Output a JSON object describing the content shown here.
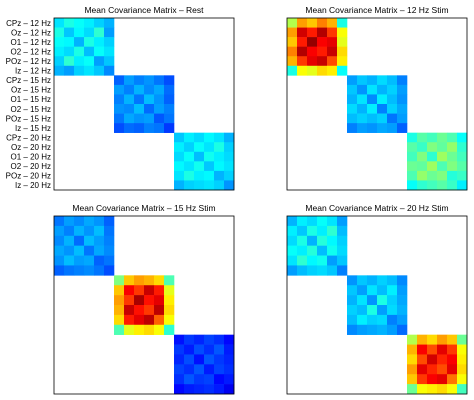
{
  "figure": {
    "row_labels": [
      "CPz – 12 Hz",
      "Oz – 12 Hz",
      "O1 – 12 Hz",
      "O2 – 12 Hz",
      "POz – 12 Hz",
      "Iz – 12 Hz",
      "CPz – 15 Hz",
      "Oz – 15 Hz",
      "O1 – 15 Hz",
      "O2 – 15 Hz",
      "POz – 15 Hz",
      "Iz – 15 Hz",
      "CPz – 20 Hz",
      "Oz – 20 Hz",
      "O1 – 20 Hz",
      "O2 – 20 Hz",
      "POz – 20 Hz",
      "Iz – 20 Hz"
    ],
    "colormap": "jet"
  },
  "chart_data": [
    {
      "type": "heatmap",
      "title": "Mean Covariance Matrix – Rest",
      "blocks": [
        [
          [
            0.35,
            0.4,
            0.38,
            0.36,
            0.33,
            0.3
          ],
          [
            0.4,
            0.32,
            0.37,
            0.34,
            0.42,
            0.28
          ],
          [
            0.38,
            0.37,
            0.3,
            0.4,
            0.36,
            0.33
          ],
          [
            0.36,
            0.34,
            0.4,
            0.31,
            0.38,
            0.35
          ],
          [
            0.33,
            0.42,
            0.36,
            0.38,
            0.28,
            0.32
          ],
          [
            0.3,
            0.28,
            0.33,
            0.35,
            0.32,
            0.26
          ]
        ],
        [
          [
            0.22,
            0.28,
            0.25,
            0.27,
            0.24,
            0.2
          ],
          [
            0.28,
            0.25,
            0.3,
            0.26,
            0.29,
            0.23
          ],
          [
            0.25,
            0.3,
            0.24,
            0.31,
            0.27,
            0.22
          ],
          [
            0.27,
            0.26,
            0.31,
            0.23,
            0.28,
            0.25
          ],
          [
            0.24,
            0.29,
            0.27,
            0.28,
            0.21,
            0.24
          ],
          [
            0.2,
            0.23,
            0.22,
            0.25,
            0.24,
            0.18
          ]
        ],
        [
          [
            0.32,
            0.36,
            0.34,
            0.37,
            0.35,
            0.3
          ],
          [
            0.36,
            0.33,
            0.38,
            0.35,
            0.4,
            0.33
          ],
          [
            0.34,
            0.38,
            0.31,
            0.39,
            0.36,
            0.34
          ],
          [
            0.37,
            0.35,
            0.39,
            0.32,
            0.37,
            0.35
          ],
          [
            0.35,
            0.4,
            0.36,
            0.37,
            0.3,
            0.33
          ],
          [
            0.3,
            0.33,
            0.34,
            0.35,
            0.33,
            0.27
          ]
        ]
      ]
    },
    {
      "type": "heatmap",
      "title": "Mean Covariance Matrix – 12 Hz Stim",
      "blocks": [
        [
          [
            0.55,
            0.72,
            0.68,
            0.75,
            0.7,
            0.4
          ],
          [
            0.72,
            0.92,
            0.85,
            0.95,
            0.82,
            0.62
          ],
          [
            0.68,
            0.85,
            0.98,
            0.88,
            0.9,
            0.6
          ],
          [
            0.75,
            0.95,
            0.88,
            0.85,
            0.93,
            0.66
          ],
          [
            0.7,
            0.82,
            0.9,
            0.93,
            0.8,
            0.64
          ],
          [
            0.4,
            0.62,
            0.6,
            0.66,
            0.64,
            0.38
          ]
        ],
        [
          [
            0.28,
            0.32,
            0.3,
            0.34,
            0.31,
            0.25
          ],
          [
            0.32,
            0.27,
            0.35,
            0.3,
            0.33,
            0.28
          ],
          [
            0.3,
            0.35,
            0.26,
            0.36,
            0.31,
            0.27
          ],
          [
            0.34,
            0.3,
            0.36,
            0.25,
            0.33,
            0.29
          ],
          [
            0.31,
            0.33,
            0.31,
            0.33,
            0.24,
            0.28
          ],
          [
            0.25,
            0.28,
            0.27,
            0.29,
            0.28,
            0.22
          ]
        ],
        [
          [
            0.4,
            0.46,
            0.44,
            0.48,
            0.45,
            0.38
          ],
          [
            0.46,
            0.43,
            0.5,
            0.47,
            0.52,
            0.42
          ],
          [
            0.44,
            0.5,
            0.42,
            0.53,
            0.48,
            0.44
          ],
          [
            0.48,
            0.47,
            0.53,
            0.45,
            0.5,
            0.46
          ],
          [
            0.45,
            0.52,
            0.48,
            0.5,
            0.41,
            0.43
          ],
          [
            0.38,
            0.42,
            0.44,
            0.46,
            0.43,
            0.36
          ]
        ]
      ]
    },
    {
      "type": "heatmap",
      "title": "Mean Covariance Matrix – 15 Hz Stim",
      "blocks": [
        [
          [
            0.24,
            0.28,
            0.26,
            0.29,
            0.27,
            0.22
          ],
          [
            0.28,
            0.25,
            0.3,
            0.27,
            0.31,
            0.24
          ],
          [
            0.26,
            0.3,
            0.23,
            0.31,
            0.28,
            0.25
          ],
          [
            0.29,
            0.27,
            0.31,
            0.24,
            0.29,
            0.26
          ],
          [
            0.27,
            0.31,
            0.28,
            0.29,
            0.22,
            0.24
          ],
          [
            0.22,
            0.24,
            0.25,
            0.26,
            0.24,
            0.2
          ]
        ],
        [
          [
            0.5,
            0.68,
            0.72,
            0.7,
            0.66,
            0.45
          ],
          [
            0.68,
            0.88,
            0.82,
            0.93,
            0.85,
            0.6
          ],
          [
            0.72,
            0.82,
            0.96,
            0.86,
            0.9,
            0.64
          ],
          [
            0.7,
            0.93,
            0.86,
            0.82,
            0.94,
            0.66
          ],
          [
            0.66,
            0.85,
            0.9,
            0.94,
            0.78,
            0.62
          ],
          [
            0.45,
            0.6,
            0.64,
            0.66,
            0.62,
            0.42
          ]
        ],
        [
          [
            0.14,
            0.18,
            0.16,
            0.19,
            0.17,
            0.13
          ],
          [
            0.18,
            0.15,
            0.2,
            0.17,
            0.21,
            0.15
          ],
          [
            0.16,
            0.2,
            0.14,
            0.21,
            0.18,
            0.16
          ],
          [
            0.19,
            0.17,
            0.21,
            0.15,
            0.19,
            0.17
          ],
          [
            0.17,
            0.21,
            0.18,
            0.19,
            0.13,
            0.15
          ],
          [
            0.13,
            0.15,
            0.16,
            0.17,
            0.15,
            0.11
          ]
        ]
      ]
    },
    {
      "type": "heatmap",
      "title": "Mean Covariance Matrix – 20 Hz Stim",
      "blocks": [
        [
          [
            0.3,
            0.36,
            0.34,
            0.38,
            0.35,
            0.28
          ],
          [
            0.36,
            0.32,
            0.4,
            0.36,
            0.42,
            0.31
          ],
          [
            0.34,
            0.4,
            0.3,
            0.41,
            0.37,
            0.33
          ],
          [
            0.38,
            0.36,
            0.41,
            0.31,
            0.39,
            0.34
          ],
          [
            0.35,
            0.42,
            0.37,
            0.39,
            0.28,
            0.32
          ],
          [
            0.28,
            0.31,
            0.33,
            0.34,
            0.32,
            0.25
          ]
        ],
        [
          [
            0.27,
            0.32,
            0.3,
            0.33,
            0.31,
            0.26
          ],
          [
            0.32,
            0.28,
            0.35,
            0.31,
            0.36,
            0.28
          ],
          [
            0.3,
            0.35,
            0.27,
            0.4,
            0.33,
            0.29
          ],
          [
            0.33,
            0.31,
            0.4,
            0.28,
            0.34,
            0.3
          ],
          [
            0.31,
            0.36,
            0.33,
            0.34,
            0.25,
            0.28
          ],
          [
            0.26,
            0.28,
            0.29,
            0.3,
            0.28,
            0.23
          ]
        ],
        [
          [
            0.55,
            0.7,
            0.66,
            0.72,
            0.68,
            0.48
          ],
          [
            0.7,
            0.88,
            0.8,
            0.9,
            0.82,
            0.62
          ],
          [
            0.66,
            0.8,
            0.92,
            0.84,
            0.88,
            0.64
          ],
          [
            0.72,
            0.9,
            0.84,
            0.8,
            0.9,
            0.66
          ],
          [
            0.68,
            0.82,
            0.88,
            0.9,
            0.76,
            0.62
          ],
          [
            0.48,
            0.62,
            0.64,
            0.66,
            0.62,
            0.44
          ]
        ]
      ]
    }
  ]
}
